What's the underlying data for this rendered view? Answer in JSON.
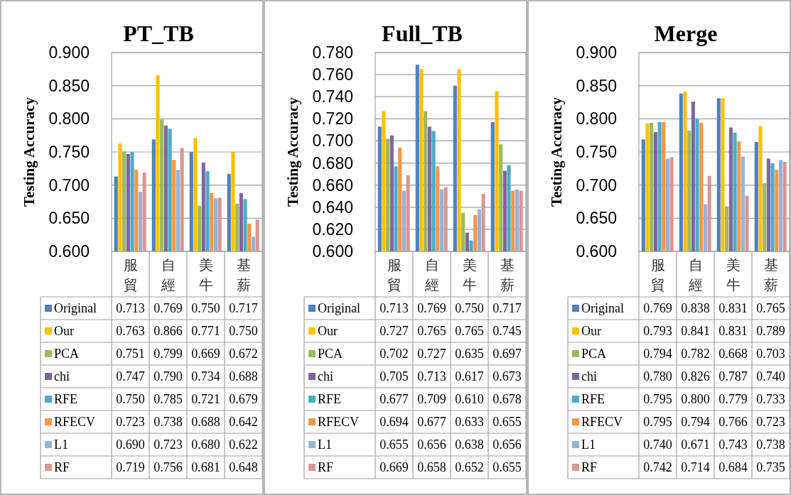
{
  "chart_data": [
    {
      "type": "bar",
      "title": "PT_TB",
      "ylabel": "Testing Accuracy",
      "categories": [
        "服貿",
        "自經",
        "美牛",
        "基薪"
      ],
      "series": [
        {
          "name": "Original",
          "color": "#4f81bd",
          "values": [
            0.713,
            0.769,
            0.75,
            0.717
          ],
          "value_labels": [
            "0.713",
            "0.769",
            "0.750",
            "0.717"
          ]
        },
        {
          "name": "Our",
          "color": "#ffc000",
          "values": [
            0.763,
            0.866,
            0.771,
            0.75
          ],
          "value_labels": [
            "0.763",
            "0.866",
            "0.771",
            "0.750"
          ]
        },
        {
          "name": "PCA",
          "color": "#9bbb59",
          "values": [
            0.751,
            0.799,
            0.669,
            0.672
          ],
          "value_labels": [
            "0.751",
            "0.799",
            "0.669",
            "0.672"
          ]
        },
        {
          "name": "chi",
          "color": "#8064a2",
          "values": [
            0.747,
            0.79,
            0.734,
            0.688
          ],
          "value_labels": [
            "0.747",
            "0.790",
            "0.734",
            "0.688"
          ]
        },
        {
          "name": "RFE",
          "color": "#4bacc6",
          "values": [
            0.75,
            0.785,
            0.721,
            0.679
          ],
          "value_labels": [
            "0.750",
            "0.785",
            "0.721",
            "0.679"
          ]
        },
        {
          "name": "RFECV",
          "color": "#f79646",
          "values": [
            0.723,
            0.738,
            0.688,
            0.642
          ],
          "value_labels": [
            "0.723",
            "0.738",
            "0.688",
            "0.642"
          ]
        },
        {
          "name": "L1",
          "color": "#95b3d7",
          "values": [
            0.69,
            0.723,
            0.68,
            0.622
          ],
          "value_labels": [
            "0.690",
            "0.723",
            "0.680",
            "0.622"
          ]
        },
        {
          "name": "RF",
          "color": "#d99694",
          "values": [
            0.719,
            0.756,
            0.681,
            0.648
          ],
          "value_labels": [
            "0.719",
            "0.756",
            "0.681",
            "0.648"
          ]
        }
      ],
      "ylim": [
        0.6,
        0.9
      ],
      "yticks": [
        {
          "value": 0.6,
          "label": "0.600"
        },
        {
          "value": 0.65,
          "label": "0.650"
        },
        {
          "value": 0.7,
          "label": "0.700"
        },
        {
          "value": 0.75,
          "label": "0.750"
        },
        {
          "value": 0.8,
          "label": "0.800"
        },
        {
          "value": 0.85,
          "label": "0.850"
        },
        {
          "value": 0.9,
          "label": "0.900"
        }
      ],
      "grid": "y",
      "legend": "bottom"
    },
    {
      "type": "bar",
      "title": "Full_TB",
      "ylabel": "Testing Accuracy",
      "categories": [
        "服貿",
        "自經",
        "美牛",
        "基薪"
      ],
      "series": [
        {
          "name": "Original",
          "color": "#4f81bd",
          "values": [
            0.713,
            0.769,
            0.75,
            0.717
          ],
          "value_labels": [
            "0.713",
            "0.769",
            "0.750",
            "0.717"
          ]
        },
        {
          "name": "Our",
          "color": "#ffc000",
          "values": [
            0.727,
            0.765,
            0.765,
            0.745
          ],
          "value_labels": [
            "0.727",
            "0.765",
            "0.765",
            "0.745"
          ]
        },
        {
          "name": "PCA",
          "color": "#9bbb59",
          "values": [
            0.702,
            0.727,
            0.635,
            0.697
          ],
          "value_labels": [
            "0.702",
            "0.727",
            "0.635",
            "0.697"
          ]
        },
        {
          "name": "chi",
          "color": "#8064a2",
          "values": [
            0.705,
            0.713,
            0.617,
            0.673
          ],
          "value_labels": [
            "0.705",
            "0.713",
            "0.617",
            "0.673"
          ]
        },
        {
          "name": "RFE",
          "color": "#4bacc6",
          "values": [
            0.677,
            0.709,
            0.61,
            0.678
          ],
          "value_labels": [
            "0.677",
            "0.709",
            "0.610",
            "0.678"
          ]
        },
        {
          "name": "RFECV",
          "color": "#f79646",
          "values": [
            0.694,
            0.677,
            0.633,
            0.655
          ],
          "value_labels": [
            "0.694",
            "0.677",
            "0.633",
            "0.655"
          ]
        },
        {
          "name": "L1",
          "color": "#95b3d7",
          "values": [
            0.655,
            0.656,
            0.638,
            0.656
          ],
          "value_labels": [
            "0.655",
            "0.656",
            "0.638",
            "0.656"
          ]
        },
        {
          "name": "RF",
          "color": "#d99694",
          "values": [
            0.669,
            0.658,
            0.652,
            0.655
          ],
          "value_labels": [
            "0.669",
            "0.658",
            "0.652",
            "0.655"
          ]
        }
      ],
      "ylim": [
        0.6,
        0.78
      ],
      "yticks": [
        {
          "value": 0.6,
          "label": "0.600"
        },
        {
          "value": 0.62,
          "label": "0.620"
        },
        {
          "value": 0.64,
          "label": "0.640"
        },
        {
          "value": 0.66,
          "label": "0.660"
        },
        {
          "value": 0.68,
          "label": "0.680"
        },
        {
          "value": 0.7,
          "label": "0.700"
        },
        {
          "value": 0.72,
          "label": "0.720"
        },
        {
          "value": 0.74,
          "label": "0.740"
        },
        {
          "value": 0.76,
          "label": "0.760"
        },
        {
          "value": 0.78,
          "label": "0.780"
        }
      ],
      "grid": "y",
      "legend": "bottom"
    },
    {
      "type": "bar",
      "title": "Merge",
      "ylabel": "Testing Accuracy",
      "categories": [
        "服貿",
        "自經",
        "美牛",
        "基薪"
      ],
      "series": [
        {
          "name": "Original",
          "color": "#4f81bd",
          "values": [
            0.769,
            0.838,
            0.831,
            0.765
          ],
          "value_labels": [
            "0.769",
            "0.838",
            "0.831",
            "0.765"
          ]
        },
        {
          "name": "Our",
          "color": "#ffc000",
          "values": [
            0.793,
            0.841,
            0.831,
            0.789
          ],
          "value_labels": [
            "0.793",
            "0.841",
            "0.831",
            "0.789"
          ]
        },
        {
          "name": "PCA",
          "color": "#9bbb59",
          "values": [
            0.794,
            0.782,
            0.668,
            0.703
          ],
          "value_labels": [
            "0.794",
            "0.782",
            "0.668",
            "0.703"
          ]
        },
        {
          "name": "chi",
          "color": "#8064a2",
          "values": [
            0.78,
            0.826,
            0.787,
            0.74
          ],
          "value_labels": [
            "0.780",
            "0.826",
            "0.787",
            "0.740"
          ]
        },
        {
          "name": "RFE",
          "color": "#4bacc6",
          "values": [
            0.795,
            0.8,
            0.779,
            0.733
          ],
          "value_labels": [
            "0.795",
            "0.800",
            "0.779",
            "0.733"
          ]
        },
        {
          "name": "RFECV",
          "color": "#f79646",
          "values": [
            0.795,
            0.794,
            0.766,
            0.723
          ],
          "value_labels": [
            "0.795",
            "0.794",
            "0.766",
            "0.723"
          ]
        },
        {
          "name": "L1",
          "color": "#95b3d7",
          "values": [
            0.74,
            0.671,
            0.743,
            0.738
          ],
          "value_labels": [
            "0.740",
            "0.671",
            "0.743",
            "0.738"
          ]
        },
        {
          "name": "RF",
          "color": "#d99694",
          "values": [
            0.742,
            0.714,
            0.684,
            0.735
          ],
          "value_labels": [
            "0.742",
            "0.714",
            "0.684",
            "0.735"
          ]
        }
      ],
      "ylim": [
        0.6,
        0.9
      ],
      "yticks": [
        {
          "value": 0.6,
          "label": "0.600"
        },
        {
          "value": 0.65,
          "label": "0.650"
        },
        {
          "value": 0.7,
          "label": "0.700"
        },
        {
          "value": 0.75,
          "label": "0.750"
        },
        {
          "value": 0.8,
          "label": "0.800"
        },
        {
          "value": 0.85,
          "label": "0.850"
        },
        {
          "value": 0.9,
          "label": "0.900"
        }
      ],
      "grid": "y",
      "legend": "bottom"
    }
  ]
}
